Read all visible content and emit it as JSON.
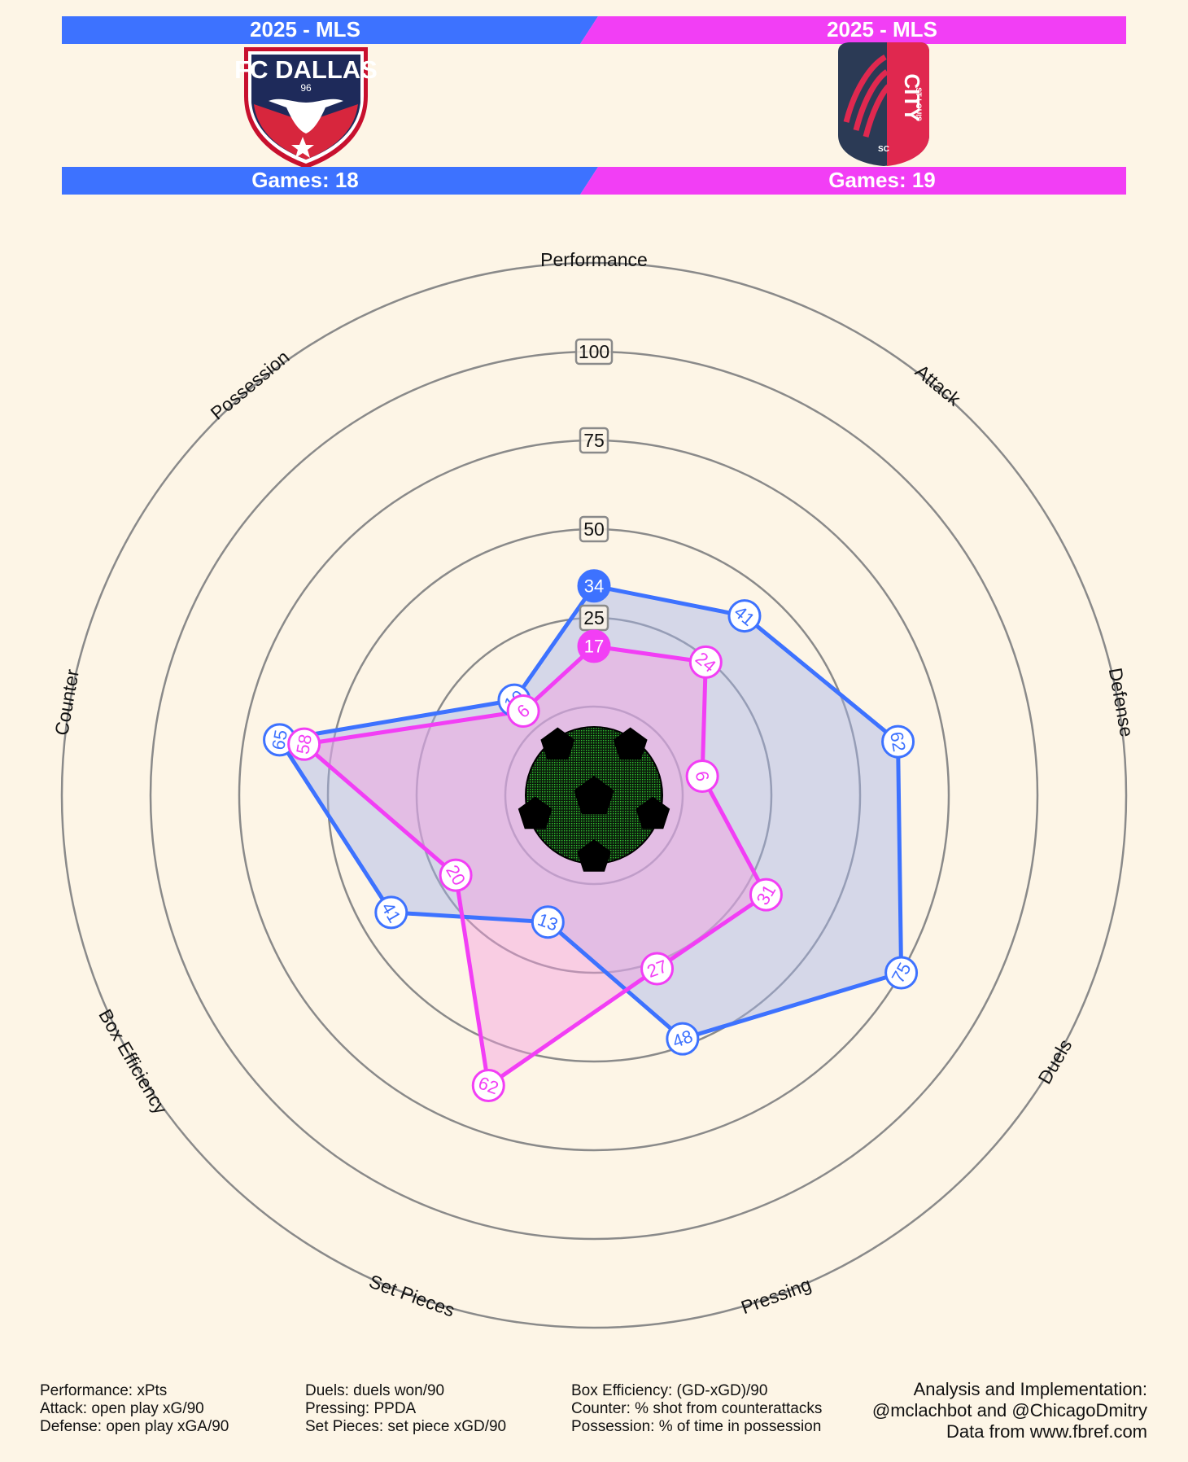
{
  "header": {
    "left": {
      "season": "2025 - MLS",
      "logo_name": "FC DALLAS",
      "logo_number": "96",
      "games": "Games: 18",
      "color": "#3d72ff"
    },
    "right": {
      "season": "2025 - MLS",
      "logo_words": [
        "ST LOUIS",
        "CITY",
        "SC"
      ],
      "games": "Games: 19",
      "color": "#f23ef5"
    }
  },
  "chart_data": {
    "type": "radar",
    "axes": [
      "Performance",
      "Attack",
      "Defense",
      "Duels",
      "Pressing",
      "Set Pieces",
      "Box Efficiency",
      "Counter",
      "Possession"
    ],
    "ring_labels": [
      "25",
      "50",
      "75",
      "100"
    ],
    "rlim": [
      0,
      100
    ],
    "series": [
      {
        "values": [
          34,
          41,
          62,
          75,
          48,
          13,
          41,
          65,
          10
        ],
        "color": "#3d72ff",
        "fill": "#a3b3ea"
      },
      {
        "values": [
          17,
          24,
          6,
          31,
          27,
          62,
          20,
          58,
          6
        ],
        "color": "#f23ef5",
        "fill": "#f49ee0"
      }
    ],
    "center_icon": "soccer-ball-icon"
  },
  "footer": {
    "col1": [
      "Performance: xPts",
      "Attack: open play xG/90",
      "Defense: open play xGA/90"
    ],
    "col2": [
      "Duels: duels won/90",
      "Pressing: PPDA",
      "Set Pieces: set piece xGD/90"
    ],
    "col3": [
      "Box Efficiency: (GD-xGD)/90",
      "Counter: % shot from counterattacks",
      "Possession: % of time in possession"
    ],
    "credits": [
      "Analysis and Implementation:",
      "@mclachbot and @ChicagoDmitry",
      "Data from www.fbref.com"
    ]
  }
}
